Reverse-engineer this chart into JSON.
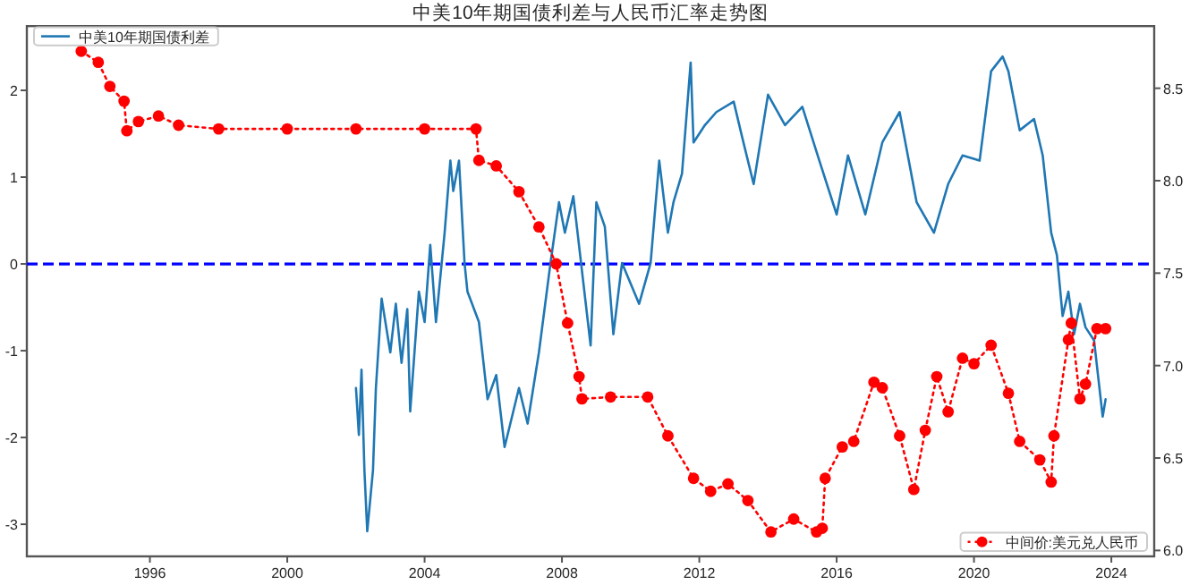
{
  "chart_data": {
    "type": "line",
    "title": "中美10年期国债利差与人民币汇率走势图",
    "xlim": [
      "1992-06",
      "2025-04"
    ],
    "xticks": [
      {
        "value": "1996",
        "label": "1996"
      },
      {
        "value": "2000",
        "label": "2000"
      },
      {
        "value": "2004",
        "label": "2004"
      },
      {
        "value": "2008",
        "label": "2008"
      },
      {
        "value": "2012",
        "label": "2012"
      },
      {
        "value": "2016",
        "label": "2016"
      },
      {
        "value": "2020",
        "label": "2020"
      },
      {
        "value": "2024",
        "label": "2024"
      }
    ],
    "ylim": [
      -3.37,
      2.74
    ],
    "yticks": [
      -3,
      -2,
      -1,
      0,
      1,
      2
    ],
    "y2lim": [
      5.968,
      8.836
    ],
    "y2ticks": [
      {
        "value": 6,
        "label": "6.0"
      },
      6.5,
      {
        "value": 7,
        "label": "7.0"
      },
      7.5,
      {
        "value": 8,
        "label": "8.0"
      },
      8.5
    ],
    "grid": false,
    "legend": "top left",
    "ref_lines": [
      {
        "axis": "y",
        "value": 0,
        "color": "#0000ff",
        "line_style": "dashed"
      }
    ],
    "series": [
      {
        "name": "中美10年期国债利差",
        "axis": "y",
        "color": "#1f77b4",
        "marker": "none",
        "line_style": "solid",
        "x": [
          "2002-01",
          "2002-02",
          "2002-03",
          "2002-04",
          "2002-05",
          "2002-07",
          "2002-08",
          "2002-10",
          "2003-01",
          "2003-03",
          "2003-05",
          "2003-07",
          "2003-08",
          "2003-11",
          "2004-01",
          "2004-03",
          "2004-05",
          "2004-08",
          "2004-10",
          "2004-11",
          "2005-01",
          "2005-03",
          "2005-04",
          "2005-08",
          "2005-11",
          "2006-02",
          "2006-05",
          "2006-07",
          "2006-10",
          "2007-01",
          "2007-05",
          "2007-09",
          "2007-12",
          "2008-02",
          "2008-05",
          "2008-11",
          "2009-01",
          "2009-04",
          "2009-07",
          "2009-10",
          "2010-04",
          "2010-08",
          "2010-11",
          "2011-02",
          "2011-04",
          "2011-07",
          "2011-10",
          "2011-11",
          "2012-03",
          "2012-07",
          "2013-01",
          "2013-04",
          "2013-08",
          "2014-01",
          "2014-07",
          "2015-01",
          "2015-07",
          "2016-01",
          "2016-05",
          "2016-11",
          "2017-05",
          "2017-11",
          "2018-05",
          "2018-11",
          "2019-04",
          "2019-09",
          "2020-03",
          "2020-07",
          "2020-11",
          "2021-01",
          "2021-05",
          "2021-10",
          "2022-01",
          "2022-04",
          "2022-06",
          "2022-08",
          "2022-10",
          "2022-12",
          "2023-02",
          "2023-04",
          "2023-07",
          "2023-10",
          "2023-11"
        ],
        "values": [
          -1.43,
          -1.97,
          -1.22,
          -2.38,
          -3.08,
          -2.38,
          -1.43,
          -0.4,
          -1.02,
          -0.46,
          -1.14,
          -0.52,
          -1.7,
          -0.32,
          -0.67,
          0.22,
          -0.67,
          0.36,
          1.19,
          0.84,
          1.19,
          0.01,
          -0.32,
          -0.67,
          -1.56,
          -1.28,
          -2.11,
          -1.84,
          -1.43,
          -1.84,
          -1.02,
          0.01,
          0.71,
          0.36,
          0.78,
          -0.94,
          0.71,
          0.43,
          -0.81,
          0.01,
          -0.46,
          0.01,
          1.19,
          0.36,
          0.71,
          1.04,
          2.32,
          1.4,
          1.6,
          1.75,
          1.87,
          1.46,
          0.92,
          1.95,
          1.6,
          1.81,
          1.19,
          0.57,
          1.25,
          0.57,
          1.4,
          1.75,
          0.71,
          0.36,
          0.92,
          1.25,
          1.19,
          2.22,
          2.39,
          2.22,
          1.54,
          1.67,
          1.25,
          0.36,
          0.1,
          -0.6,
          -0.32,
          -0.81,
          -0.46,
          -0.73,
          -0.88,
          -1.76,
          -1.56
        ]
      },
      {
        "name": "中间价:美元兑人民币",
        "axis": "y2",
        "color": "#ff0000",
        "marker": "circle",
        "line_style": "dotted",
        "x": [
          "1994-01",
          "1994-07",
          "1994-11",
          "1995-04",
          "1995-05",
          "1995-09",
          "1996-04",
          "1996-11",
          "1998-01",
          "2000-01",
          "2002-01",
          "2004-01",
          "2005-07",
          "2005-08",
          "2006-02",
          "2006-10",
          "2007-05",
          "2007-11",
          "2008-03",
          "2008-07",
          "2008-08",
          "2009-06",
          "2010-07",
          "2011-02",
          "2011-11",
          "2012-05",
          "2012-11",
          "2013-06",
          "2014-02",
          "2014-10",
          "2015-06",
          "2015-08",
          "2015-09",
          "2016-03",
          "2016-07",
          "2017-02",
          "2017-05",
          "2017-11",
          "2018-04",
          "2018-08",
          "2018-12",
          "2019-04",
          "2019-09",
          "2020-01",
          "2020-07",
          "2021-01",
          "2021-05",
          "2021-12",
          "2022-04",
          "2022-05",
          "2022-10",
          "2022-11",
          "2023-02",
          "2023-04",
          "2023-08",
          "2023-11"
        ],
        "values": [
          8.7,
          8.64,
          8.51,
          8.43,
          8.27,
          8.32,
          8.35,
          8.3,
          8.28,
          8.28,
          8.28,
          8.28,
          8.28,
          8.11,
          8.08,
          7.94,
          7.75,
          7.55,
          7.23,
          6.94,
          6.82,
          6.83,
          6.83,
          6.62,
          6.39,
          6.32,
          6.36,
          6.27,
          6.1,
          6.17,
          6.1,
          6.12,
          6.39,
          6.56,
          6.59,
          6.91,
          6.88,
          6.62,
          6.33,
          6.65,
          6.94,
          6.75,
          7.04,
          7.01,
          7.11,
          6.85,
          6.59,
          6.49,
          6.37,
          6.62,
          7.14,
          7.23,
          6.82,
          6.9,
          7.2,
          7.2
        ]
      }
    ]
  }
}
